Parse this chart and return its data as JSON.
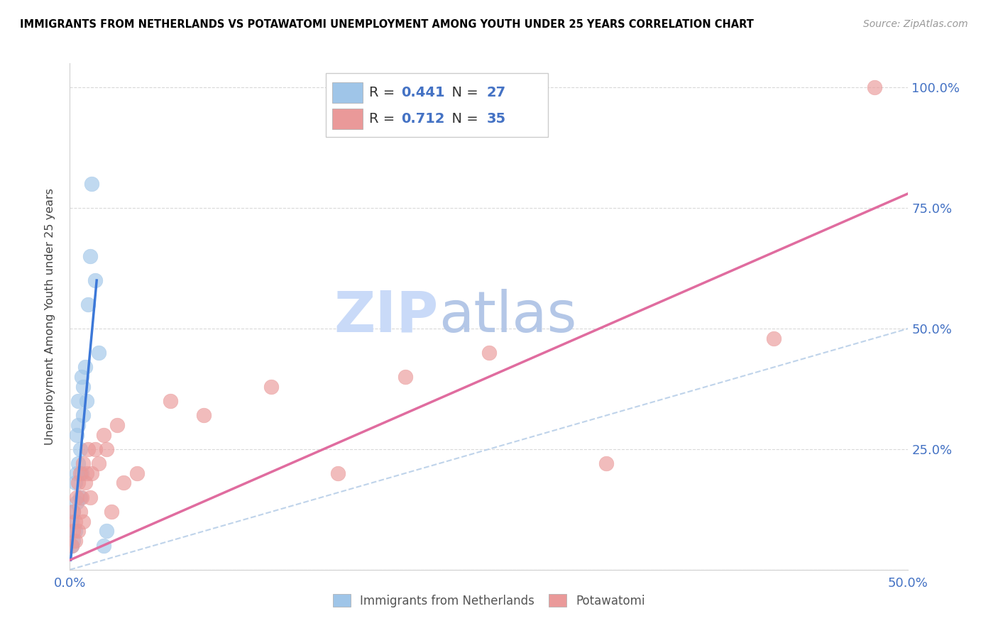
{
  "title": "IMMIGRANTS FROM NETHERLANDS VS POTAWATOMI UNEMPLOYMENT AMONG YOUTH UNDER 25 YEARS CORRELATION CHART",
  "source": "Source: ZipAtlas.com",
  "ylabel": "Unemployment Among Youth under 25 years",
  "xlim": [
    0.0,
    0.5
  ],
  "ylim": [
    0.0,
    1.05
  ],
  "r_netherlands": 0.441,
  "n_netherlands": 27,
  "r_potawatomi": 0.712,
  "n_potawatomi": 35,
  "color_netherlands": "#9fc5e8",
  "color_potawatomi": "#ea9999",
  "line_color_netherlands": "#3c78d8",
  "line_color_potawatomi": "#e06c9f",
  "diagonal_color": "#b8cfe8",
  "watermark_zip": "ZIP",
  "watermark_atlas": "atlas",
  "watermark_color_zip": "#c9daf8",
  "watermark_color_atlas": "#b4c7e7",
  "netherlands_x": [
    0.001,
    0.001,
    0.002,
    0.002,
    0.003,
    0.003,
    0.004,
    0.004,
    0.004,
    0.005,
    0.005,
    0.005,
    0.006,
    0.006,
    0.007,
    0.007,
    0.008,
    0.008,
    0.009,
    0.01,
    0.011,
    0.012,
    0.013,
    0.015,
    0.017,
    0.02,
    0.022
  ],
  "netherlands_y": [
    0.05,
    0.1,
    0.06,
    0.12,
    0.08,
    0.18,
    0.14,
    0.2,
    0.28,
    0.22,
    0.3,
    0.35,
    0.15,
    0.25,
    0.2,
    0.4,
    0.32,
    0.38,
    0.42,
    0.35,
    0.55,
    0.65,
    0.8,
    0.6,
    0.45,
    0.05,
    0.08
  ],
  "potawatomi_x": [
    0.001,
    0.002,
    0.002,
    0.003,
    0.003,
    0.004,
    0.005,
    0.005,
    0.006,
    0.006,
    0.007,
    0.008,
    0.008,
    0.009,
    0.01,
    0.011,
    0.012,
    0.013,
    0.015,
    0.017,
    0.02,
    0.022,
    0.025,
    0.028,
    0.032,
    0.04,
    0.06,
    0.08,
    0.12,
    0.16,
    0.2,
    0.25,
    0.32,
    0.42,
    0.48
  ],
  "potawatomi_y": [
    0.05,
    0.08,
    0.12,
    0.06,
    0.1,
    0.15,
    0.08,
    0.18,
    0.12,
    0.2,
    0.15,
    0.1,
    0.22,
    0.18,
    0.2,
    0.25,
    0.15,
    0.2,
    0.25,
    0.22,
    0.28,
    0.25,
    0.12,
    0.3,
    0.18,
    0.2,
    0.35,
    0.32,
    0.38,
    0.2,
    0.4,
    0.45,
    0.22,
    0.48,
    1.0
  ],
  "nl_line_x": [
    0.0005,
    0.016
  ],
  "nl_line_y": [
    0.02,
    0.6
  ],
  "pt_line_x": [
    0.0,
    0.5
  ],
  "pt_line_y": [
    0.02,
    0.78
  ]
}
